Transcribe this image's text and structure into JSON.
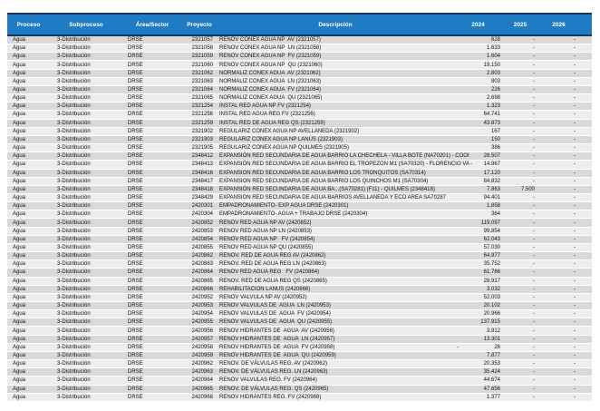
{
  "colors": {
    "header_bg": "#1E7BC4",
    "header_border": "#17375D",
    "row_odd_bg": "#D9D9D9",
    "row_even_bg": "#EDEDED",
    "body_text": "#141414",
    "header_text": "#FFFFFF"
  },
  "table": {
    "columns": [
      {
        "key": "proceso",
        "label": "Proceso"
      },
      {
        "key": "subproceso",
        "label": "Subproceso"
      },
      {
        "key": "area",
        "label": "Área/Sector"
      },
      {
        "key": "proyecto",
        "label": "Proyecto"
      },
      {
        "key": "descripcion",
        "label": "Descripción"
      },
      {
        "key": "y2024",
        "label": "2024"
      },
      {
        "key": "y2025",
        "label": "2025"
      },
      {
        "key": "y2026",
        "label": "2026"
      }
    ],
    "rows": [
      [
        "Agua",
        "3-Distribución",
        "DRSE",
        "2321057",
        "RENOV CONEX AGUA NP  AV (2321057)",
        "628",
        "-",
        "-"
      ],
      [
        "Agua",
        "3-Distribución",
        "DRSE",
        "2321058",
        "RENOV CONEX AGUA NP  LN (2321058)",
        "1.633",
        "-",
        "-"
      ],
      [
        "Agua",
        "3-Distribución",
        "DRSE",
        "2321059",
        "RENOV CONEX AGUA NP  FV (2321059)",
        "1.604",
        "-",
        "-"
      ],
      [
        "Agua",
        "3-Distribución",
        "DRSE",
        "2321060",
        "RENOV CONEX AGUA NP  QU (2321060)",
        "19.150",
        "-",
        "-"
      ],
      [
        "Agua",
        "3-Distribución",
        "DRSE",
        "2321062",
        "NORMALIZ CONEX AGUA  AV (2321062)",
        "2.803",
        "-",
        "-"
      ],
      [
        "Agua",
        "3-Distribución",
        "DRSE",
        "2321063",
        "NORMALIZ CONEX AGUA  LN (2321063)",
        "803",
        "-",
        "-"
      ],
      [
        "Agua",
        "3-Distribución",
        "DRSE",
        "2321064",
        "NORMALIZ CONEX AGUA  FV (2321064)",
        "226",
        "-",
        "-"
      ],
      [
        "Agua",
        "3-Distribución",
        "DRSE",
        "2321065",
        "NORMALIZ CONEX AGUA  QU (2321065)",
        "2.698",
        "-",
        "-"
      ],
      [
        "Agua",
        "3-Distribución",
        "DRSE",
        "2321254",
        "INSTAL RED AGUA NP FV (2321254)",
        "1.323",
        "-",
        "-"
      ],
      [
        "Agua",
        "3-Distribución",
        "DRSE",
        "2321256",
        "INSTAL RED AGUA REG FV (2321256)",
        "64.741",
        "-",
        "-"
      ],
      [
        "Agua",
        "3-Distribución",
        "DRSE",
        "2321259",
        "INSTAL RED DE AGUA REG QS (2321259)",
        "43.873",
        "-",
        "-"
      ],
      [
        "Agua",
        "3-Distribución",
        "DRSE",
        "2321902",
        "REGULARIZ CONEX AGUA NP AVELLANEDA (2321902)",
        "167",
        "-",
        "-"
      ],
      [
        "Agua",
        "3-Distribución",
        "DRSE",
        "2321903",
        "REGULARIZ CONEX AGUA NP LANÚS (2321903)",
        "150",
        "-",
        "-"
      ],
      [
        "Agua",
        "3-Distribución",
        "DRSE",
        "2321905",
        "REGULARIZ CONEX AGUA NP QUILMES (2321905)",
        "386",
        "-",
        "-"
      ],
      [
        "Agua",
        "3-Distribución",
        "DRSE",
        "2348412",
        "EXPANSIÓN RED SECUNDARIA DE AGUA BARRIO LA CHECHELA - VILLA BOTE (NA70201) - COOI",
        "28.507",
        "-",
        "-"
      ],
      [
        "Agua",
        "3-Distribución",
        "DRSE",
        "2348413",
        "EXPANSIÓN RED SECUNDARIA DE AGUA BARRIO EL TROPEZON M1 (SA70320) - FLORENCIO VA -",
        "14.967",
        "-",
        "-"
      ],
      [
        "Agua",
        "3-Distribución",
        "DRSE",
        "2348416",
        "EXPANSION RED SECUNDARIA DE AGUA BARRIO LOS TRONQUITOS (SA70314)",
        "17.120",
        "-",
        "-"
      ],
      [
        "Agua",
        "3-Distribución",
        "DRSE",
        "2348417",
        "EXPANSION RED SECUNDARIA DE AGUA BARRIO LOS QUINCHOS M1 (SA70304)",
        "84.832",
        "-",
        "-"
      ],
      [
        "Agua",
        "3-Distribución",
        "DRSE",
        "2348418",
        "EXPANSIÓN RED SECUNDARIA DE AGUA BA...(SA70281) (F11) - QUILMES (2348418)",
        "7.863",
        "7.500",
        "-"
      ],
      [
        "Agua",
        "3-Distribución",
        "DRSE",
        "2348429",
        "EXPANSION RED SECUNDARIA DE AGUA BARRIOS AVELLANEDA Y ECO AREA SA70287",
        "94.401",
        "-",
        "-"
      ],
      [
        "Agua",
        "3-Distribución",
        "DRSE",
        "2420301",
        "EMPADRONAMIENTO- EXP AGUA DRSE (2420301)",
        "1.858",
        "-",
        "-"
      ],
      [
        "Agua",
        "3-Distribución",
        "DRSE",
        "2420304",
        "EMPADRONAMIENTO- AGUA + TRABAJO DRSE (2420304)",
        "364",
        "-",
        "-"
      ],
      [
        "Agua",
        "3-Distribución",
        "DRSE",
        "2420852",
        "RENOV RED AGUA NP AV (2420852)",
        "119.097",
        "-",
        "-"
      ],
      [
        "Agua",
        "3-Distribución",
        "DRSE",
        "2420853",
        "RENOV RED AGUA NP LN (2420853)",
        "99.854",
        "-",
        "-"
      ],
      [
        "Agua",
        "3-Distribución",
        "DRSE",
        "2420854",
        "RENOV RED AGUA NP   FV (2420854)",
        "62.043",
        "-",
        "-"
      ],
      [
        "Agua",
        "3-Distribución",
        "DRSE",
        "2420855",
        "RENOV RED AGUA NP QU (2420855)",
        "57.030",
        "-",
        "-"
      ],
      [
        "Agua",
        "3-Distribución",
        "DRSE",
        "2420862",
        "RENOV. RED DE AGUA REG AV (2420862)",
        "64.977",
        "-",
        "-"
      ],
      [
        "Agua",
        "3-Distribución",
        "DRSE",
        "2420863",
        "RENOV. RED DE AGUA REG LN (2420863)",
        "35.752",
        "-",
        "-"
      ],
      [
        "Agua",
        "3-Distribución",
        "DRSE",
        "2420864",
        "RENOV RED AGUA REG   FV (2420864)",
        "61.766",
        "-",
        "-"
      ],
      [
        "Agua",
        "3-Distribución",
        "DRSE",
        "2420865",
        "RENOV. RED DE AGUA REG QS (2420865)",
        "28.917",
        "-",
        "-"
      ],
      [
        "Agua",
        "3-Distribución",
        "DRSE",
        "2420866",
        "REHABILITACION LANUS (2420866)",
        "3.032",
        "-",
        "-"
      ],
      [
        "Agua",
        "3-Distribución",
        "DRSE",
        "2420952",
        "RENOV VALVULA NP AV (2420952)",
        "52.003",
        "-",
        "-"
      ],
      [
        "Agua",
        "3-Distribución",
        "DRSE",
        "2420953",
        "RENOV VALVULAS DE  AGUA  LN (2420953)",
        "20.102",
        "-",
        "-"
      ],
      [
        "Agua",
        "3-Distribución",
        "DRSE",
        "2420954",
        "RENOV VALVULAS DE  AGUA  FV (2420954)",
        "20.966",
        "-",
        "-"
      ],
      [
        "Agua",
        "3-Distribución",
        "DRSE",
        "2420955",
        "RENOV VALVULAS DE  AGUA  QU (2420955)",
        "137.915",
        "-",
        "-"
      ],
      [
        "Agua",
        "3-Distribución",
        "DRSE",
        "2420956",
        "RENOV HIDRANTES DE  AGUA  AV (2420956)",
        "3.912",
        "-",
        "-"
      ],
      [
        "Agua",
        "3-Distribución",
        "DRSE",
        "2420957",
        "RENOV HIDRANTES DE  AGUA  LN (2420957)",
        "13.301",
        "-",
        "-"
      ],
      [
        "Agua",
        "3-Distribución",
        "DRSE",
        "2420958",
        "RENOV HIDRANTES DE  AGUA  FV (2420958)",
        "-|26",
        "-",
        "-"
      ],
      [
        "Agua",
        "3-Distribución",
        "DRSE",
        "2420959",
        "RENOV HIDRANTES DE  AGUA  QU (2420959)",
        "7.877",
        "-",
        "-"
      ],
      [
        "Agua",
        "3-Distribución",
        "DRSE",
        "2420962",
        "RENOV. DE VÁLVULAS REG. AV (2420962)",
        "20.353",
        "-",
        "-"
      ],
      [
        "Agua",
        "3-Distribución",
        "DRSE",
        "2420963",
        "RENOV. DE VÁLVULAS REG. LN (2420963)",
        "35.424",
        "-",
        "-"
      ],
      [
        "Agua",
        "3-Distribución",
        "DRSE",
        "2420964",
        "RENOV VALVULAS REG. FV (2420964)",
        "44.674",
        "-",
        "-"
      ],
      [
        "Agua",
        "3-Distribución",
        "DRSE",
        "2420965",
        "RENOV. DE VÁLVULAS REG. QS (2420965)",
        "47.656",
        "-",
        "-"
      ],
      [
        "Agua",
        "3-Distribución",
        "DRSE",
        "2420968",
        "RENOV HIDRANTES REG. FV (2420968)",
        "1.377",
        "-",
        "-"
      ]
    ]
  }
}
